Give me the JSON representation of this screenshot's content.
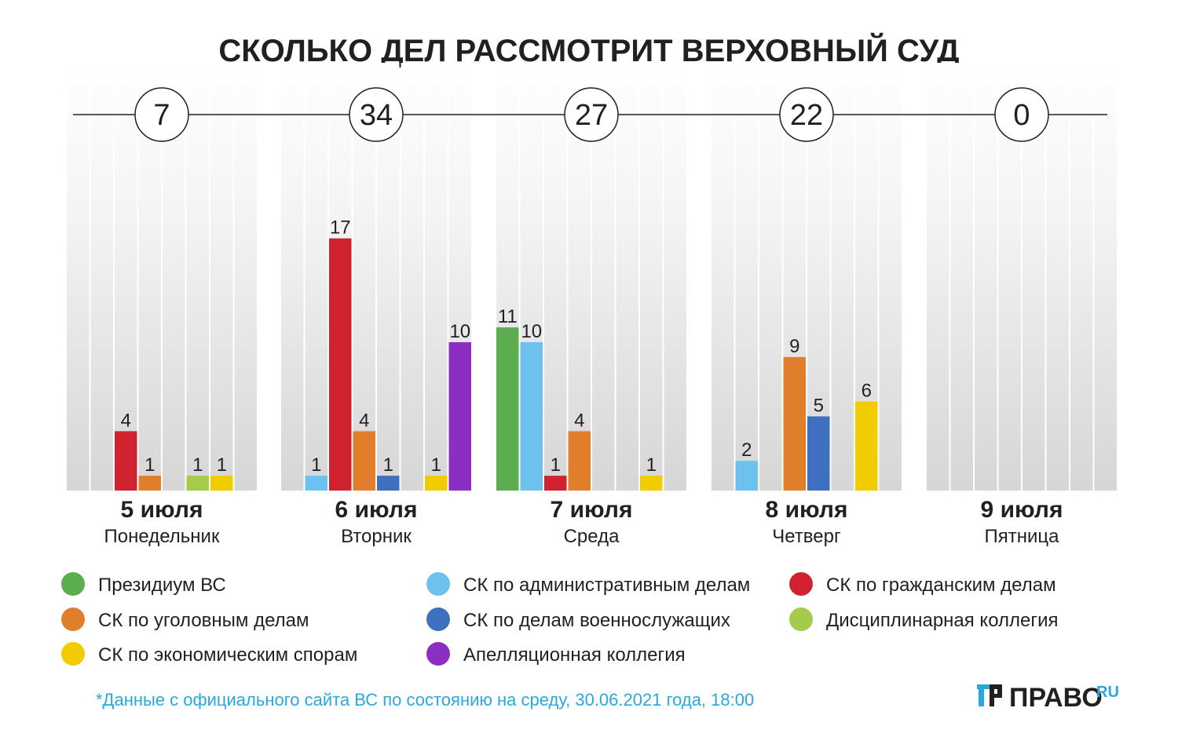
{
  "chart_data": {
    "type": "bar",
    "title": "СКОЛЬКО ДЕЛ РАССМОТРИТ ВЕРХОВНЫЙ СУД",
    "categories": [
      {
        "date": "5 июля",
        "weekday": "Понедельник",
        "total": "7"
      },
      {
        "date": "6 июля",
        "weekday": "Вторник",
        "total": "34"
      },
      {
        "date": "7 июля",
        "weekday": "Среда",
        "total": "27"
      },
      {
        "date": "8 июля",
        "weekday": "Четверг",
        "total": "22"
      },
      {
        "date": "9 июля",
        "weekday": "Пятница",
        "total": "0"
      }
    ],
    "series": [
      {
        "name": "Президиум ВС",
        "color": "#5cad4f",
        "values": [
          0,
          0,
          11,
          0,
          0
        ]
      },
      {
        "name": "СК по административным делам",
        "color": "#6cc1ee",
        "values": [
          0,
          1,
          10,
          2,
          0
        ]
      },
      {
        "name": "СК по гражданским делам",
        "color": "#d1232f",
        "values": [
          4,
          17,
          1,
          0,
          0
        ]
      },
      {
        "name": "СК по уголовным делам",
        "color": "#e07e2c",
        "values": [
          1,
          4,
          4,
          9,
          0
        ]
      },
      {
        "name": "СК по делам военнослужащих",
        "color": "#3f6fbf",
        "values": [
          0,
          1,
          0,
          5,
          0
        ]
      },
      {
        "name": "Дисциплинарная коллегия",
        "color": "#a6cb4c",
        "values": [
          1,
          0,
          0,
          0,
          0
        ]
      },
      {
        "name": "СК по экономическим спорам",
        "color": "#f0cc00",
        "values": [
          1,
          1,
          1,
          6,
          0
        ]
      },
      {
        "name": "Апелляционная коллегия",
        "color": "#8a2ec4",
        "values": [
          0,
          10,
          0,
          0,
          0
        ]
      }
    ],
    "legend_order": [
      0,
      3,
      6,
      1,
      4,
      7,
      2,
      5
    ],
    "ylim": [
      0,
      30
    ],
    "xlabel": "",
    "ylabel": ""
  },
  "footnote": "*Данные с официального сайта ВС по состоянию на среду, 30.06.2021 года, 18:00",
  "logo": {
    "main": "ПРАВО",
    "suffix": "RU"
  },
  "colors": {
    "text": "#231f20",
    "footnote": "#29a8e0"
  }
}
